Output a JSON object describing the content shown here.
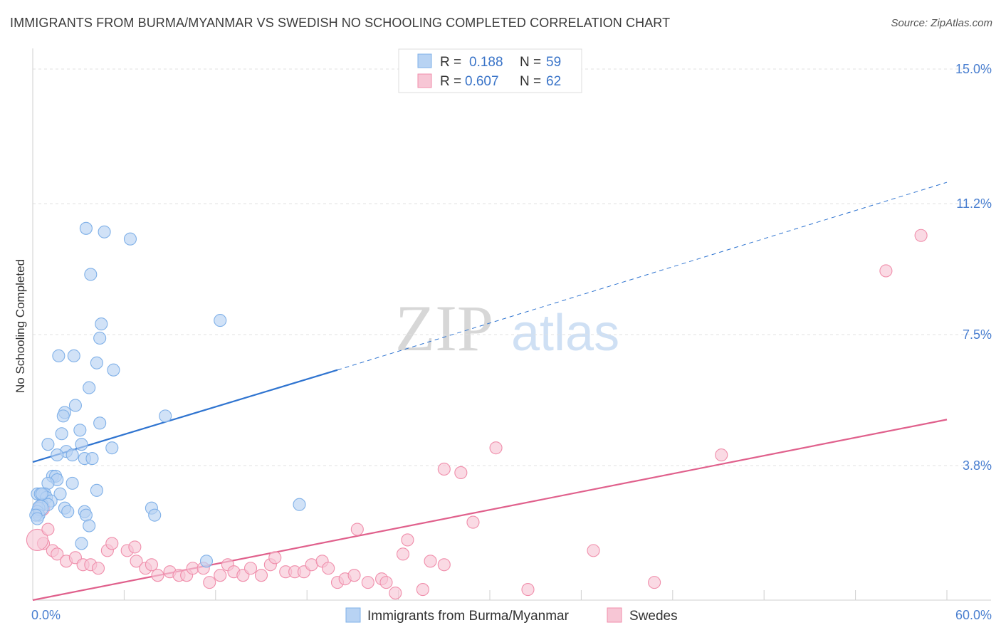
{
  "chart_data": {
    "type": "scatter",
    "title": "IMMIGRANTS FROM BURMA/MYANMAR VS SWEDISH NO SCHOOLING COMPLETED CORRELATION CHART",
    "source": "Source: ZipAtlas.com",
    "xlabel": "",
    "ylabel": "No Schooling Completed",
    "xlim": [
      0,
      60
    ],
    "ylim": [
      0,
      15.5
    ],
    "x_tick_labels": {
      "left": "0.0%",
      "right": "60.0%"
    },
    "y_ticks": [
      {
        "value": 3.8,
        "label": "3.8%"
      },
      {
        "value": 7.5,
        "label": "7.5%"
      },
      {
        "value": 11.2,
        "label": "11.2%"
      },
      {
        "value": 15.0,
        "label": "15.0%"
      }
    ],
    "watermark": {
      "part1": "ZIP",
      "part2": "atlas"
    },
    "legend": [
      {
        "r_label": "R =",
        "r_value": "0.188",
        "n_label": "N =",
        "n_value": "59"
      },
      {
        "r_label": "R =",
        "r_value": "0.607",
        "n_label": "N =",
        "n_value": "62"
      }
    ],
    "series": [
      {
        "name": "Immigrants from Burma/Myanmar",
        "color": "#7fb0e8",
        "fill": "#b8d3f3",
        "line_color": "#2f74d0",
        "trend": {
          "x0": 0,
          "y0": 3.9,
          "x1": 20,
          "y1": 6.5,
          "x_dash_end": 60,
          "y_dash_end": 11.8
        },
        "points": [
          [
            3.5,
            10.5
          ],
          [
            4.7,
            10.4
          ],
          [
            6.4,
            10.2
          ],
          [
            3.8,
            9.2
          ],
          [
            4.5,
            7.8
          ],
          [
            12.3,
            7.9
          ],
          [
            4.4,
            7.4
          ],
          [
            1.7,
            6.9
          ],
          [
            2.7,
            6.9
          ],
          [
            4.2,
            6.7
          ],
          [
            5.3,
            6.5
          ],
          [
            3.7,
            6.0
          ],
          [
            2.8,
            5.5
          ],
          [
            2.1,
            5.3
          ],
          [
            2.0,
            5.2
          ],
          [
            8.7,
            5.2
          ],
          [
            4.4,
            5.0
          ],
          [
            3.1,
            4.8
          ],
          [
            1.9,
            4.7
          ],
          [
            1.0,
            4.4
          ],
          [
            3.2,
            4.4
          ],
          [
            5.2,
            4.3
          ],
          [
            2.2,
            4.2
          ],
          [
            1.6,
            4.1
          ],
          [
            2.6,
            4.1
          ],
          [
            3.4,
            4.0
          ],
          [
            3.9,
            4.0
          ],
          [
            1.3,
            3.5
          ],
          [
            1.5,
            3.5
          ],
          [
            1.6,
            3.4
          ],
          [
            1.0,
            3.3
          ],
          [
            2.6,
            3.3
          ],
          [
            4.2,
            3.1
          ],
          [
            0.7,
            3.0
          ],
          [
            0.3,
            3.0
          ],
          [
            0.8,
            3.0
          ],
          [
            1.8,
            3.0
          ],
          [
            0.5,
            3.0
          ],
          [
            0.9,
            2.9
          ],
          [
            1.2,
            2.8
          ],
          [
            0.6,
            2.7
          ],
          [
            1.0,
            2.7
          ],
          [
            2.1,
            2.6
          ],
          [
            0.4,
            2.6
          ],
          [
            7.8,
            2.6
          ],
          [
            17.5,
            2.7
          ],
          [
            3.4,
            2.5
          ],
          [
            3.5,
            2.4
          ],
          [
            8.0,
            2.4
          ],
          [
            2.3,
            2.5
          ],
          [
            3.7,
            2.1
          ],
          [
            3.2,
            1.6
          ],
          [
            11.4,
            1.1
          ],
          [
            0.3,
            2.5
          ],
          [
            0.4,
            2.4
          ],
          [
            0.5,
            2.6
          ],
          [
            0.2,
            2.4
          ],
          [
            0.3,
            2.3
          ],
          [
            0.6,
            3.0
          ]
        ]
      },
      {
        "name": "Swedes",
        "color": "#f08eab",
        "fill": "#f7c6d5",
        "line_color": "#e0608c",
        "trend": {
          "x0": 0,
          "y0": 0.0,
          "x1": 60,
          "y1": 5.1
        },
        "points": [
          [
            58.3,
            10.3
          ],
          [
            56.0,
            9.3
          ],
          [
            45.2,
            4.1
          ],
          [
            30.4,
            4.3
          ],
          [
            27.0,
            3.7
          ],
          [
            28.1,
            3.6
          ],
          [
            28.9,
            2.2
          ],
          [
            21.3,
            2.0
          ],
          [
            24.6,
            1.7
          ],
          [
            36.8,
            1.4
          ],
          [
            0.7,
            1.6
          ],
          [
            1.3,
            1.4
          ],
          [
            1.6,
            1.3
          ],
          [
            2.2,
            1.1
          ],
          [
            2.8,
            1.2
          ],
          [
            3.3,
            1.0
          ],
          [
            3.8,
            1.0
          ],
          [
            4.3,
            0.9
          ],
          [
            4.9,
            1.4
          ],
          [
            5.2,
            1.6
          ],
          [
            6.2,
            1.4
          ],
          [
            6.7,
            1.5
          ],
          [
            6.8,
            1.1
          ],
          [
            7.4,
            0.9
          ],
          [
            7.8,
            1.0
          ],
          [
            8.2,
            0.7
          ],
          [
            9.0,
            0.8
          ],
          [
            9.6,
            0.7
          ],
          [
            10.1,
            0.7
          ],
          [
            10.5,
            0.9
          ],
          [
            11.2,
            0.9
          ],
          [
            11.6,
            0.5
          ],
          [
            12.3,
            0.7
          ],
          [
            12.8,
            1.0
          ],
          [
            13.2,
            0.8
          ],
          [
            13.8,
            0.7
          ],
          [
            14.3,
            0.9
          ],
          [
            15.0,
            0.7
          ],
          [
            15.6,
            1.0
          ],
          [
            15.9,
            1.2
          ],
          [
            16.6,
            0.8
          ],
          [
            17.2,
            0.8
          ],
          [
            17.8,
            0.8
          ],
          [
            18.3,
            1.0
          ],
          [
            19.0,
            1.1
          ],
          [
            19.4,
            0.9
          ],
          [
            20.0,
            0.5
          ],
          [
            20.5,
            0.6
          ],
          [
            21.1,
            0.7
          ],
          [
            22.0,
            0.5
          ],
          [
            22.9,
            0.6
          ],
          [
            23.2,
            0.5
          ],
          [
            23.8,
            0.2
          ],
          [
            24.3,
            1.3
          ],
          [
            25.6,
            0.3
          ],
          [
            26.1,
            1.1
          ],
          [
            27.0,
            1.0
          ],
          [
            32.5,
            0.3
          ],
          [
            40.8,
            0.5
          ],
          [
            0.3,
            1.7
          ],
          [
            0.6,
            2.6
          ],
          [
            1.0,
            2.0
          ]
        ]
      }
    ]
  }
}
